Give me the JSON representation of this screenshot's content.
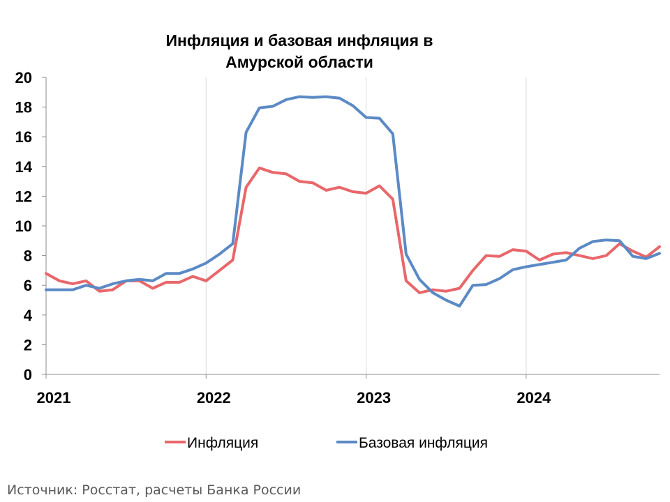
{
  "chart_data": {
    "type": "line",
    "title_lines": [
      "Инфляция и базовая инфляция в",
      "Амурской области"
    ],
    "xlabel": "",
    "ylabel": "",
    "ylim": [
      0,
      20
    ],
    "y_ticks": [
      0,
      2,
      4,
      6,
      8,
      10,
      12,
      14,
      16,
      18,
      20
    ],
    "x_tick_labels": [
      "2021",
      "2022",
      "2023",
      "2024"
    ],
    "x_tick_positions": [
      0,
      12,
      24,
      36
    ],
    "x_range": [
      0,
      46
    ],
    "grid": "vertical lines at year boundaries",
    "legend_position": "bottom",
    "series": [
      {
        "name": "Инфляция",
        "color": "#e8676a",
        "values": [
          6.8,
          6.3,
          6.1,
          6.3,
          5.6,
          5.7,
          6.3,
          6.3,
          5.8,
          6.2,
          6.2,
          6.6,
          6.3,
          7.0,
          7.7,
          12.6,
          13.9,
          13.6,
          13.5,
          13.0,
          12.9,
          12.4,
          12.6,
          12.3,
          12.2,
          12.7,
          11.8,
          6.3,
          5.5,
          5.7,
          5.6,
          5.8,
          7.0,
          8.0,
          7.95,
          8.4,
          8.3,
          7.7,
          8.1,
          8.2,
          8.0,
          7.8,
          8.0,
          8.8,
          8.3,
          7.9,
          8.6
        ]
      },
      {
        "name": "Базовая инфляция",
        "color": "#5b8ac5",
        "values": [
          5.7,
          5.7,
          5.7,
          6.0,
          5.8,
          6.1,
          6.3,
          6.4,
          6.3,
          6.8,
          6.8,
          7.1,
          7.5,
          8.1,
          8.8,
          16.3,
          17.95,
          18.05,
          18.5,
          18.7,
          18.65,
          18.7,
          18.6,
          18.1,
          17.3,
          17.25,
          16.2,
          8.1,
          6.4,
          5.5,
          5.0,
          4.6,
          6.0,
          6.05,
          6.45,
          7.05,
          7.25,
          7.4,
          7.55,
          7.7,
          8.5,
          8.95,
          9.05,
          9.0,
          7.95,
          7.8,
          8.15
        ]
      }
    ]
  },
  "source_text": "Источник: Росстат, расчеты Банка России"
}
